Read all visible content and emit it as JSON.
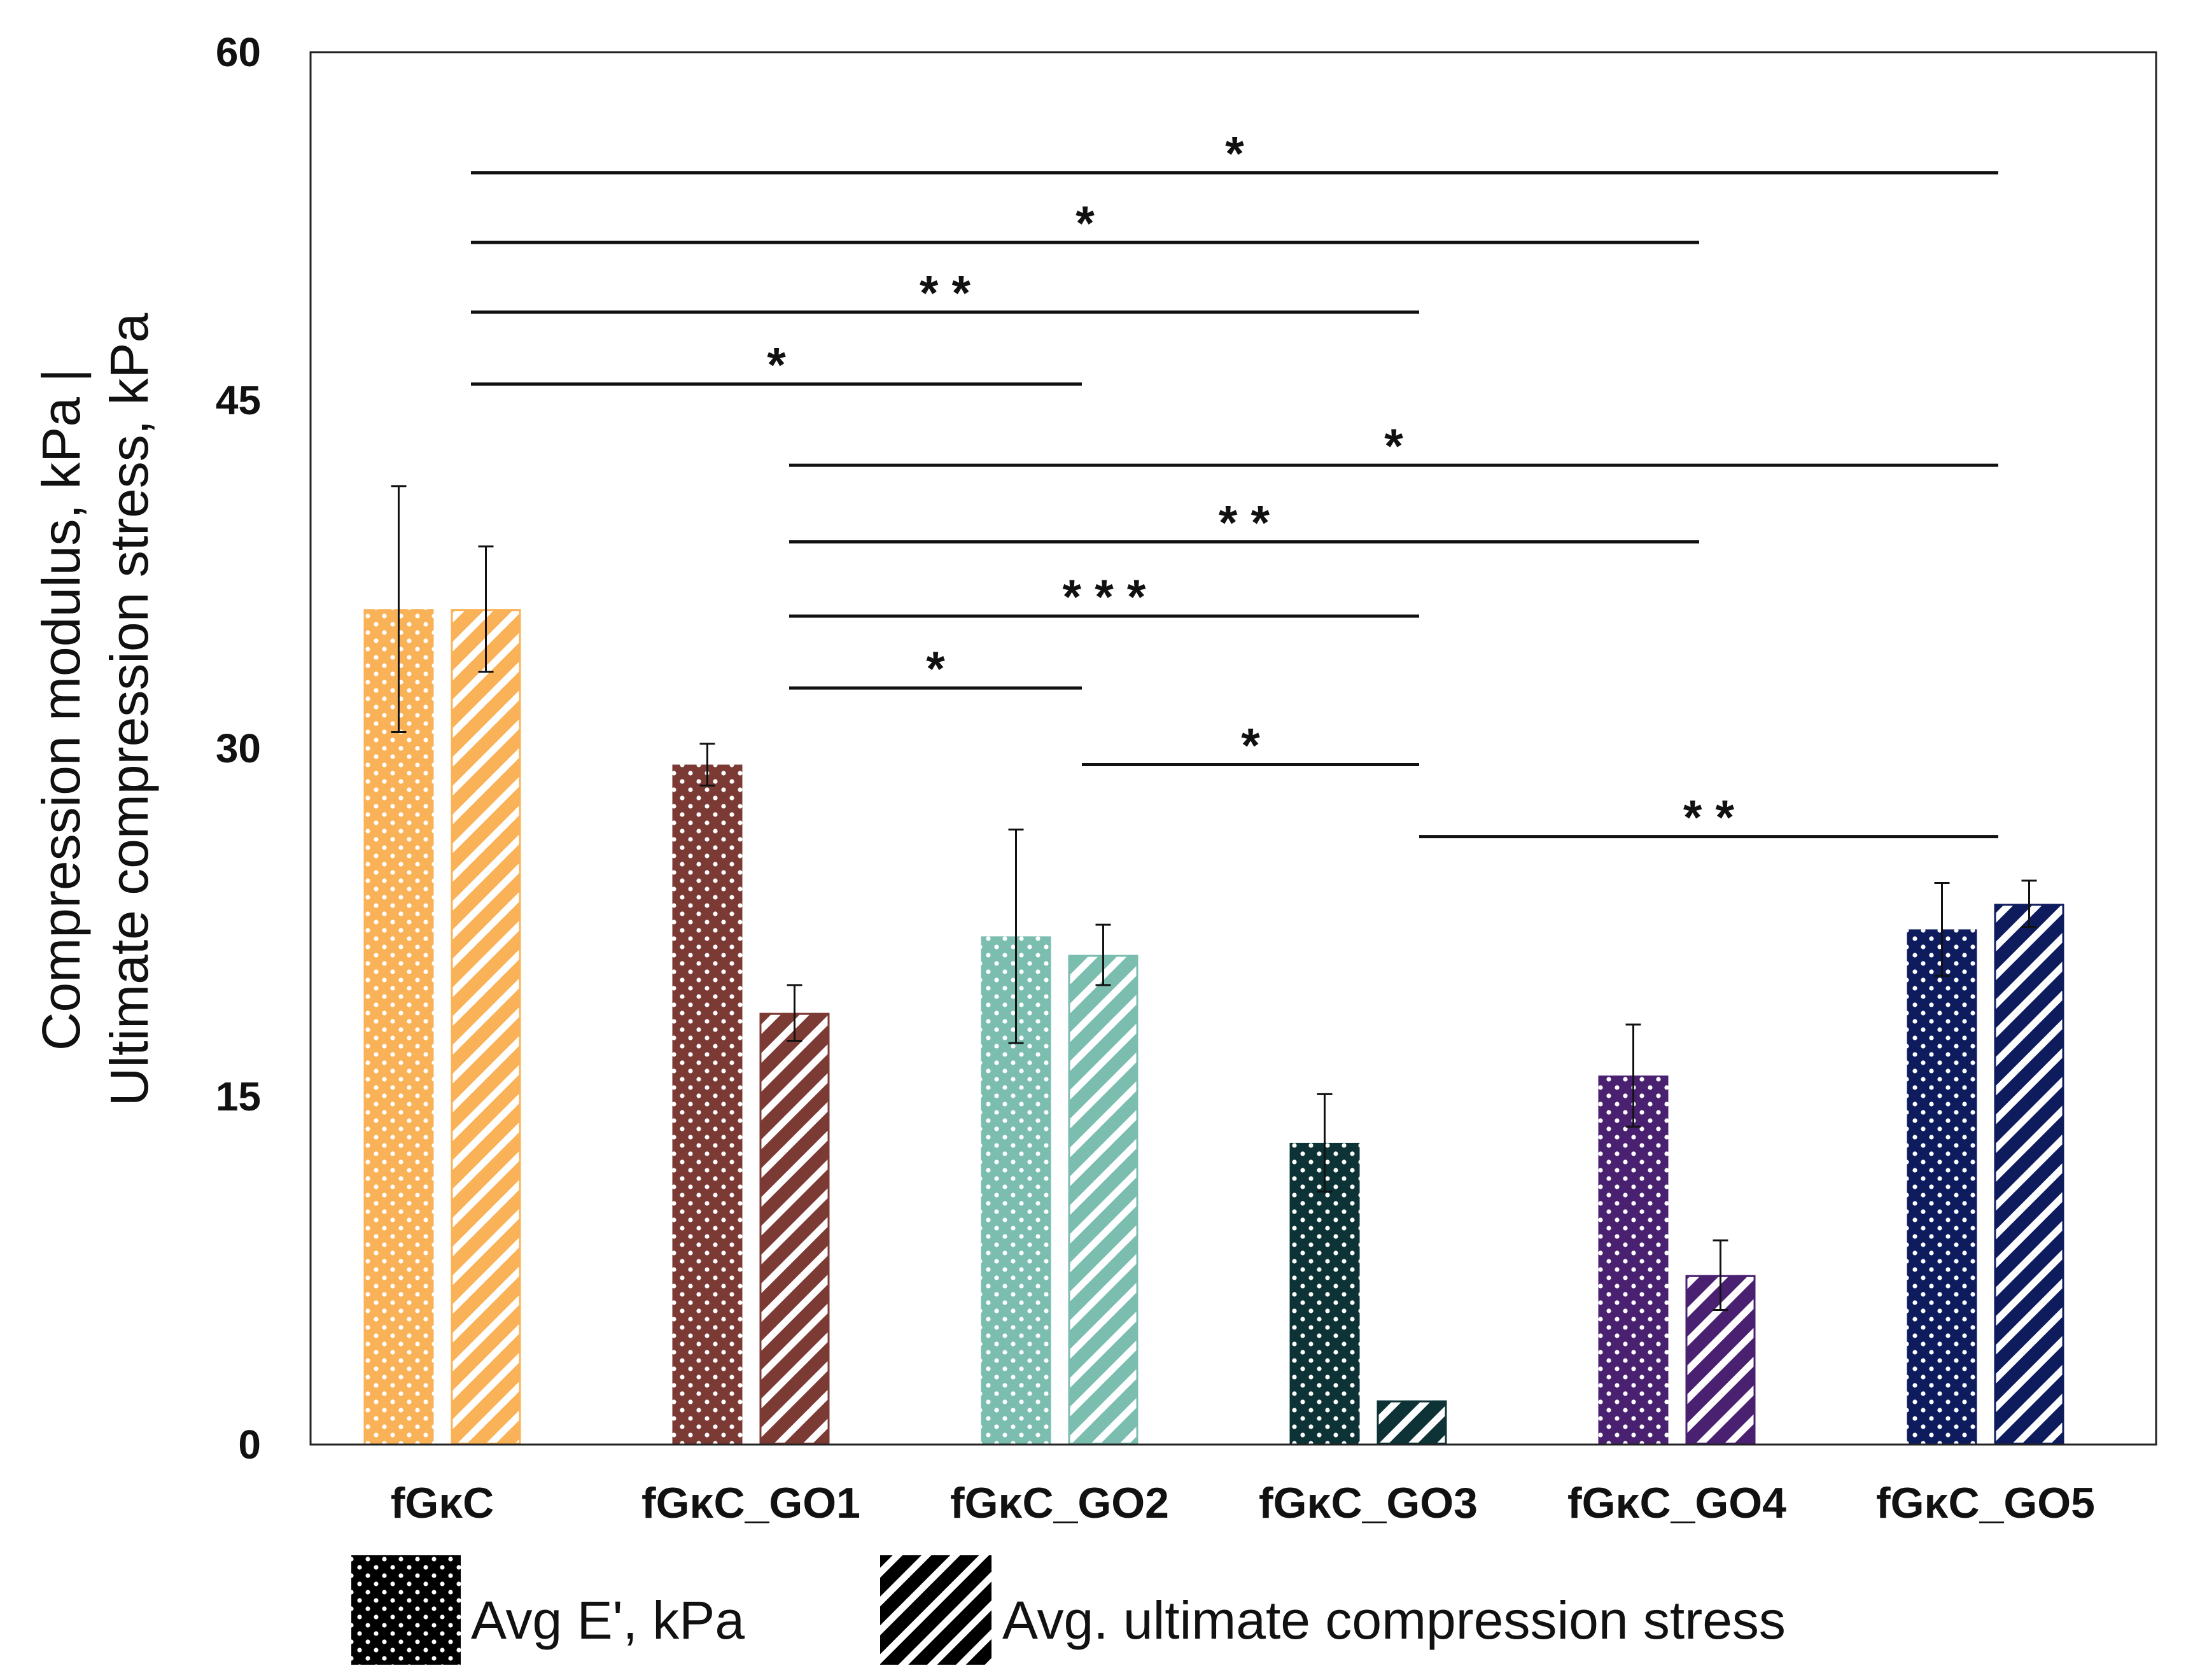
{
  "chart_data": {
    "type": "bar",
    "title": "",
    "xlabel": "",
    "ylabel_lines": [
      "Compression modulus, kPa |",
      "Ultimate compression stress, kPa"
    ],
    "ylim": [
      0,
      60
    ],
    "yticks": [
      0,
      15,
      30,
      45,
      60
    ],
    "categories": [
      "fGκC",
      "fGκC_GO1",
      "fGκC_GO2",
      "fGκC_GO3",
      "fGκC_GO4",
      "fGκC_GO5"
    ],
    "category_colors": [
      "#F9B257",
      "#7C3A35",
      "#7BBDAF",
      "#0D3337",
      "#4A2170",
      "#0E1C5E"
    ],
    "series": [
      {
        "name": "Avg E', kPa",
        "pattern": "dots",
        "values": [
          36.0,
          29.3,
          21.9,
          13.0,
          15.9,
          22.2
        ],
        "errors": [
          5.3,
          0.9,
          4.6,
          2.1,
          2.2,
          2.0
        ]
      },
      {
        "name": "Avg. ultimate compression stress",
        "pattern": "stripes",
        "values": [
          36.0,
          18.6,
          21.1,
          1.9,
          7.3,
          23.3
        ],
        "errors": [
          2.7,
          1.2,
          1.3,
          0.0,
          1.5,
          1.0
        ]
      }
    ],
    "significance": [
      {
        "from": 0,
        "to": 5,
        "y": 54.8,
        "stars": "*"
      },
      {
        "from": 0,
        "to": 4,
        "y": 51.8,
        "stars": "*"
      },
      {
        "from": 0,
        "to": 3,
        "y": 48.8,
        "stars": "* *"
      },
      {
        "from": 0,
        "to": 2,
        "y": 45.7,
        "stars": "*"
      },
      {
        "from": 1,
        "to": 5,
        "y": 42.2,
        "stars": "*"
      },
      {
        "from": 1,
        "to": 4,
        "y": 38.9,
        "stars": "* *"
      },
      {
        "from": 1,
        "to": 3,
        "y": 35.7,
        "stars": "* * *"
      },
      {
        "from": 1,
        "to": 2,
        "y": 32.6,
        "stars": "*"
      },
      {
        "from": 2,
        "to": 3,
        "y": 29.3,
        "stars": "*"
      },
      {
        "from": 3,
        "to": 5,
        "y": 26.2,
        "stars": "* *"
      }
    ],
    "legend": {
      "position": "bottom-left",
      "entries": [
        "Avg E', kPa",
        "Avg. ultimate compression stress"
      ]
    }
  }
}
